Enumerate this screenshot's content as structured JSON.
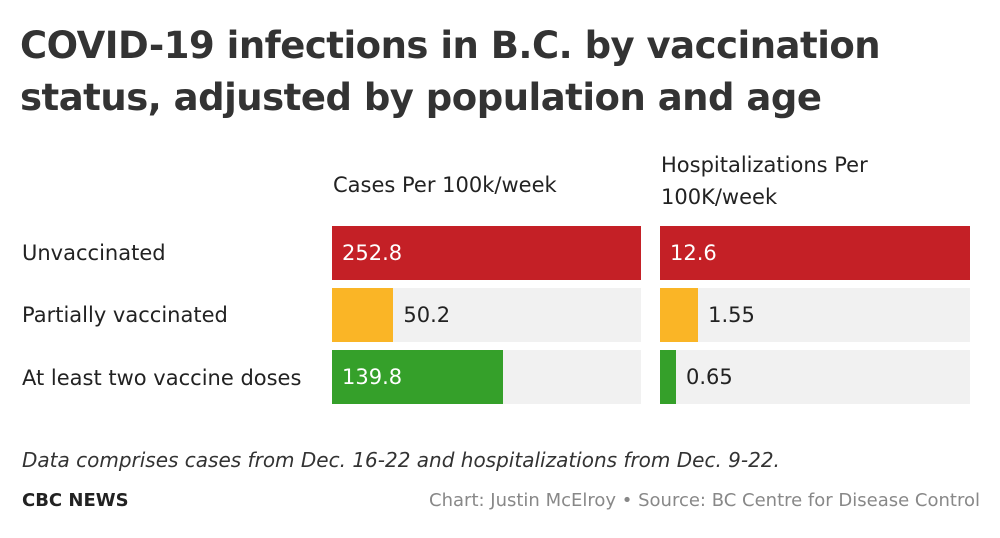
{
  "title": "COVID-19 infections in B.C. by vaccination status, adjusted by population and age",
  "note": "Data comprises cases from Dec. 16-22 and hospitalizations from Dec. 9-22.",
  "brand": "CBC NEWS",
  "credit": "Chart: Justin McElroy • Source: BC Centre for Disease Control",
  "colors": {
    "unvaccinated": "#c42026",
    "partially": "#fab526",
    "two_doses": "#35a02a",
    "track": "#f1f1f1"
  },
  "chart_data": {
    "type": "bar",
    "title": "COVID-19 infections in B.C. by vaccination status, adjusted by population and age",
    "categories": [
      "Unvaccinated",
      "Partially vaccinated",
      "At least two vaccine doses"
    ],
    "series": [
      {
        "name": "Cases Per 100k/week",
        "values": [
          252.8,
          50.2,
          139.8
        ],
        "labels": [
          "252.8",
          "50.2",
          "139.8"
        ],
        "max": 252.8
      },
      {
        "name": "Hospitalizations Per 100K/week",
        "values": [
          12.6,
          1.55,
          0.65
        ],
        "labels": [
          "12.6",
          "1.55",
          "0.65"
        ],
        "max": 12.6
      }
    ],
    "grid": false,
    "legend": "none"
  }
}
